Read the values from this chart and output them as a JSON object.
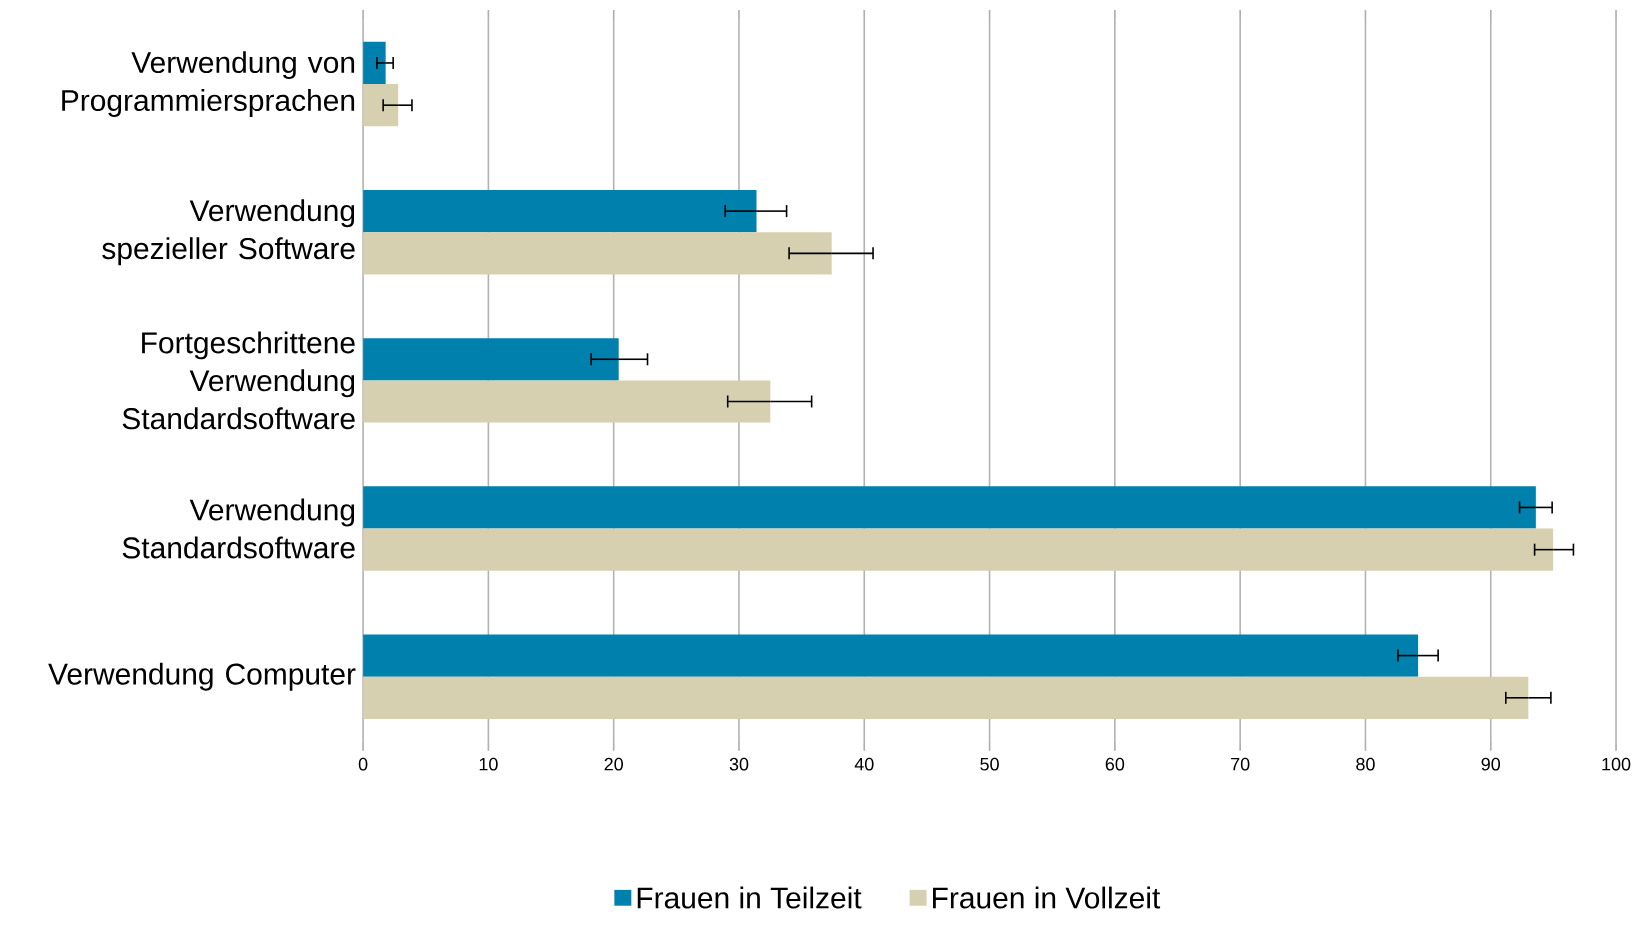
{
  "chart_data": {
    "type": "bar",
    "orientation": "horizontal",
    "categories": [
      "Verwendung von Programmiersprachen",
      "Verwendung spezieller Software",
      "Fortgeschrittene Verwendung Standardsoftware",
      "Verwendung Standardsoftware",
      "Verwendung Computer"
    ],
    "series": [
      {
        "name": "Frauen in Teilzeit",
        "color": "#0080ad",
        "values": [
          1.8,
          31.4,
          20.4,
          93.6,
          84.2
        ],
        "errors": [
          [
            1.1,
            2.4
          ],
          [
            28.9,
            33.8
          ],
          [
            18.2,
            22.7
          ],
          [
            92.3,
            94.9
          ],
          [
            82.6,
            85.8
          ]
        ]
      },
      {
        "name": "Frauen in Vollzeit",
        "color": "#d6d0b0",
        "values": [
          2.8,
          37.4,
          32.5,
          95.0,
          93.0
        ],
        "errors": [
          [
            1.6,
            3.9
          ],
          [
            34.0,
            40.7
          ],
          [
            29.1,
            35.8
          ],
          [
            93.5,
            96.6
          ],
          [
            91.2,
            94.8
          ]
        ]
      }
    ],
    "xlim": [
      0,
      100
    ],
    "xticks": [
      0,
      10,
      20,
      30,
      40,
      50,
      60,
      70,
      80,
      90,
      100
    ],
    "grid": "x",
    "legend": "bottom"
  }
}
